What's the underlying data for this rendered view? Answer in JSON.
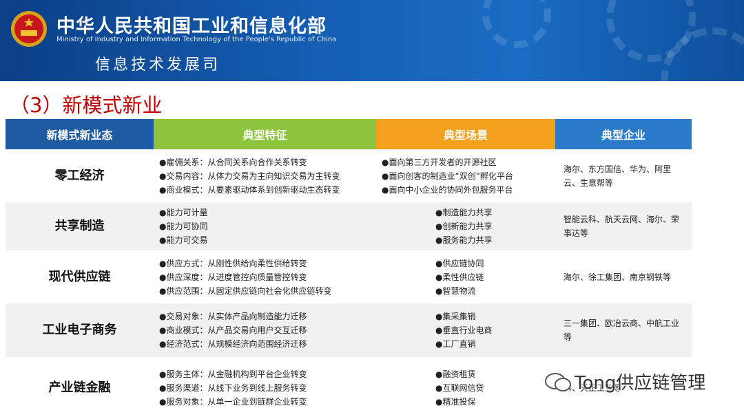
{
  "header": {
    "title": "中华人民共和国工业和信息化部",
    "subtitle": "Ministry of Industry and Information Technology of the People's Republic of China",
    "department": "信息技术发展司"
  },
  "section_title": "（3）新模式新业",
  "table": {
    "columns": [
      "新模式新业态",
      "典型特征",
      "典型场景",
      "典型企业"
    ],
    "rows": [
      {
        "name": "零工经济",
        "features": [
          "●雇佣关系：从合同关系向合作关系转变",
          "●交易内容：从体力交易为主向知识交易为主转变",
          "●商业模式：从要素驱动体系到创新驱动生态转变"
        ],
        "scenes": [
          "●面向第三方开发者的开源社区",
          "●面向创客的制造业“双创”孵化平台",
          "●面向中小企业的协同外包服务平台"
        ],
        "enterprises": "海尔、东方国信、华为、阿里云、生意帮等"
      },
      {
        "name": "共享制造",
        "features": [
          "●能力可计量",
          "●能力可协同",
          "●能力可交易"
        ],
        "scenes": [
          "●制造能力共享",
          "●创新能力共享",
          "●服务能力共享"
        ],
        "enterprises": "智能云科、航天云网、海尔、荣事达等"
      },
      {
        "name": "现代供应链",
        "features": [
          "●供应方式：从刚性供给向柔性供给转变",
          "●供应深度：从进度管控向质量管控转变",
          "●供应范围：从固定供应链向社会化供应链转变"
        ],
        "scenes": [
          "●供应链协同",
          "●柔性供应链",
          "●智慧物流"
        ],
        "enterprises": "海尔、徐工集团、南京钢铁等"
      },
      {
        "name": "工业电子商务",
        "features": [
          "●交易对象：从实体产品向制造能力迁移",
          "●商业模式：从产品交易向用户交互迁移",
          "●经济范式：从规模经济向范围经济迁移"
        ],
        "scenes": [
          "●集采集销",
          "●垂直行业电商",
          "●工厂直销"
        ],
        "enterprises": "三一集团、欧冶云商、中航工业等"
      },
      {
        "name": "产业链金融",
        "features": [
          "●服务主体：从金融机构到平台企业转变",
          "●服务渠道：从线下业务到线上服务转变",
          "●服务对象：从单一企业到链群企业转变"
        ],
        "scenes": [
          "●融资租赁",
          "●互联网信贷",
          "●精准投保"
        ],
        "enterprises": "科、天正工业等"
      }
    ]
  },
  "watermark": "Tong供应链管理"
}
